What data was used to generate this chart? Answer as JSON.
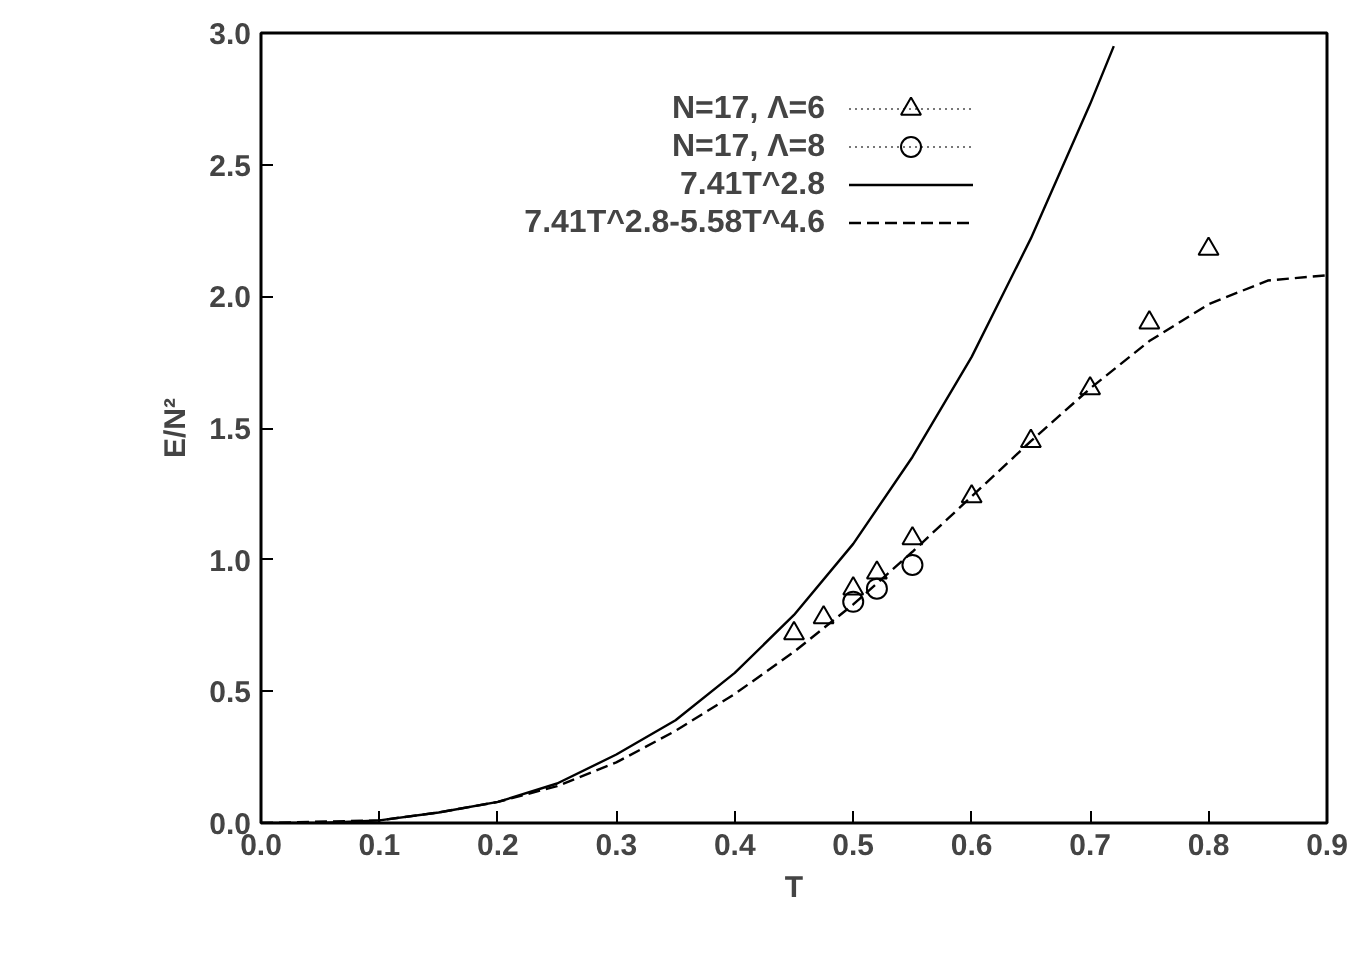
{
  "chart_data": {
    "type": "scatter",
    "xlabel": "T",
    "ylabel": "E/N²",
    "xlim": [
      0,
      0.9
    ],
    "ylim": [
      0,
      3.0
    ],
    "xticks": [
      {
        "value": 0,
        "label": "0.0"
      },
      0.1,
      0.2,
      0.3,
      0.4,
      0.5,
      0.6,
      0.7,
      0.8,
      0.9
    ],
    "yticks": [
      {
        "value": 0,
        "label": "0.0"
      },
      0.5,
      {
        "value": 1,
        "label": "1.0"
      },
      1.5,
      {
        "value": 2,
        "label": "2.0"
      },
      2.5,
      {
        "value": 3,
        "label": "3.0"
      }
    ],
    "grid": false,
    "legend": "top left",
    "series": [
      {
        "name": "N=17, Λ=6",
        "marker": "triangle",
        "color": "#000000",
        "x": [
          0.45,
          0.475,
          0.5,
          0.52,
          0.55,
          0.6,
          0.65,
          0.7,
          0.75,
          0.8
        ],
        "values": [
          0.72,
          0.78,
          0.89,
          0.95,
          1.08,
          1.24,
          1.45,
          1.65,
          1.9,
          2.18
        ]
      },
      {
        "name": "N=17, Λ=8",
        "marker": "circle",
        "color": "#000000",
        "x": [
          0.5,
          0.52,
          0.55
        ],
        "values": [
          0.84,
          0.89,
          0.98
        ]
      },
      {
        "name": "7.41T^2.8",
        "type": "line",
        "line_style": "solid",
        "color": "#000000",
        "x": [
          0,
          0.05,
          0.1,
          0.15,
          0.2,
          0.25,
          0.3,
          0.35,
          0.4,
          0.45,
          0.5,
          0.55,
          0.6,
          0.65,
          0.7,
          0.72
        ],
        "values": [
          0,
          0,
          0.01,
          0.04,
          0.08,
          0.15,
          0.26,
          0.39,
          0.57,
          0.79,
          1.06,
          1.39,
          1.77,
          2.22,
          2.73,
          2.95
        ]
      },
      {
        "name": "7.41T^2.8-5.58T^4.6",
        "type": "line",
        "line_style": "dashed",
        "color": "#000000",
        "x": [
          0,
          0.1,
          0.15,
          0.2,
          0.25,
          0.3,
          0.35,
          0.4,
          0.45,
          0.5,
          0.55,
          0.6,
          0.65,
          0.7,
          0.75,
          0.8,
          0.85,
          0.9
        ],
        "values": [
          0,
          0.01,
          0.04,
          0.08,
          0.14,
          0.23,
          0.35,
          0.49,
          0.65,
          0.83,
          1.03,
          1.24,
          1.45,
          1.65,
          1.83,
          1.97,
          2.06,
          2.08
        ]
      }
    ]
  }
}
